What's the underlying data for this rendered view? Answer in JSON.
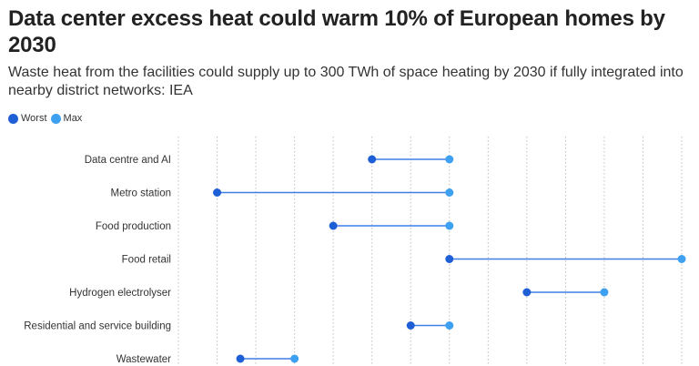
{
  "header": {
    "title": "Data center excess heat could warm 10% of European homes by 2030",
    "subtitle": "Waste heat from the facilities could supply up to 300 TWh of space heating by 2030 if fully integrated into nearby district networks: IEA"
  },
  "legend": {
    "items": [
      {
        "label": "Worst",
        "color": "#1f5fd6"
      },
      {
        "label": "Max",
        "color": "#3ea0f0"
      }
    ],
    "placement": "top-left"
  },
  "chart_data": {
    "type": "dumbbell",
    "title": "Data center excess heat could warm 10% of European homes by 2030",
    "subtitle": "Waste heat from the facilities could supply up to 300 TWh of space heating by 2030 if fully integrated into nearby district networks: IEA",
    "xlabel": "",
    "ylabel": "",
    "xlim": [
      0,
      65
    ],
    "grid": true,
    "x_tick_labels_visible": false,
    "categories": [
      "Data centre and AI",
      "Metro station",
      "Food production",
      "Food retail",
      "Hydrogen electrolyser",
      "Residential and service building",
      "Wastewater"
    ],
    "series": [
      {
        "name": "Worst",
        "color": "#1f5fd6",
        "values": [
          25,
          5,
          20,
          35,
          45,
          30,
          8
        ]
      },
      {
        "name": "Max",
        "color": "#3ea0f0",
        "values": [
          35,
          35,
          35,
          65,
          55,
          35,
          15
        ]
      }
    ]
  }
}
